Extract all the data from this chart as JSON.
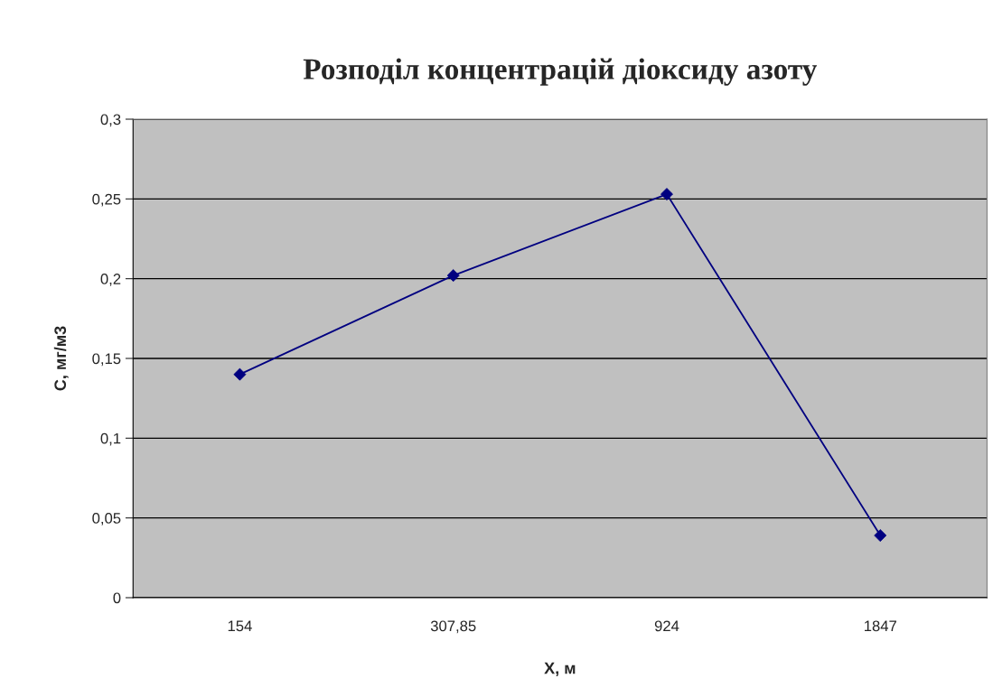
{
  "chart_data": {
    "type": "line",
    "title": "Розподіл концентрацій діоксиду азоту",
    "xlabel": "X, м",
    "ylabel": "С, мг/м3",
    "categories": [
      "154",
      "307,85",
      "924",
      "1847"
    ],
    "series": [
      {
        "color": "#000080",
        "values": [
          0.14,
          0.202,
          0.253,
          0.039
        ]
      }
    ],
    "ylim": [
      0,
      0.3
    ],
    "yticks": [
      0,
      {
        "value": 0.05,
        "label": "0,05"
      },
      {
        "value": 0.1,
        "label": "0,1"
      },
      {
        "value": 0.15,
        "label": "0,15"
      },
      {
        "value": 0.2,
        "label": "0,2"
      },
      {
        "value": 0.25,
        "label": "0,25"
      },
      {
        "value": 0.3,
        "label": "0,3"
      }
    ],
    "grid": "y",
    "marker": "diamond",
    "line_style": "solid"
  }
}
